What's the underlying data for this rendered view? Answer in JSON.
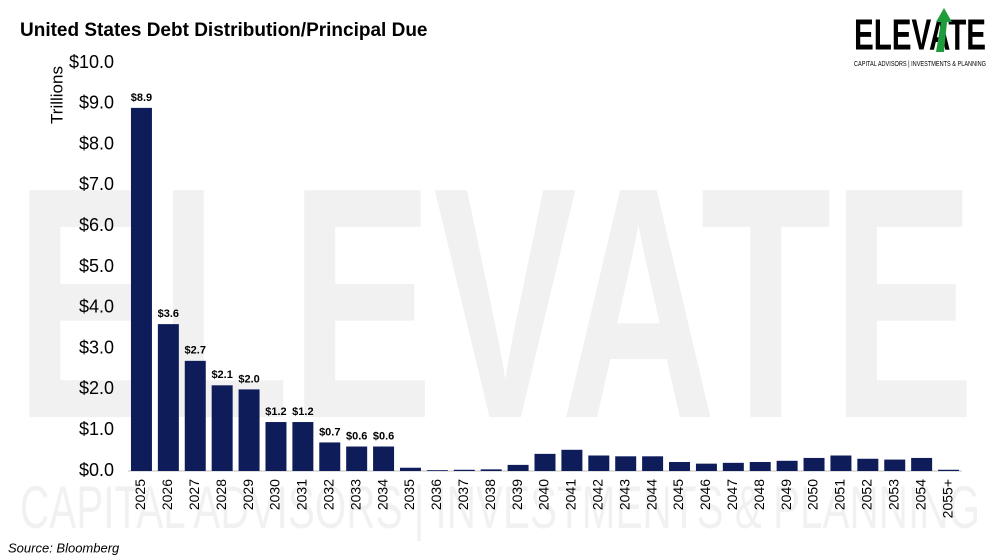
{
  "chart_data": {
    "type": "bar",
    "title": "United States Debt Distribution/Principal Due",
    "y_label": "Trillions",
    "source": "Source: Bloomberg",
    "brand": "ELEVATE",
    "brand_tagline": "CAPITAL ADVISORS | INVESTMENTS & PLANNING",
    "color": "#0e1c5a",
    "categories": [
      "2025",
      "2026",
      "2027",
      "2028",
      "2029",
      "2030",
      "2031",
      "2032",
      "2033",
      "2034",
      "2035",
      "2036",
      "2037",
      "2038",
      "2039",
      "2040",
      "2041",
      "2042",
      "2043",
      "2044",
      "2045",
      "2046",
      "2047",
      "2048",
      "2049",
      "2050",
      "2051",
      "2052",
      "2053",
      "2054",
      "2055+"
    ],
    "values": [
      8.9,
      3.6,
      2.7,
      2.1,
      2.0,
      1.2,
      1.2,
      0.7,
      0.6,
      0.6,
      0.08,
      0.02,
      0.03,
      0.04,
      0.15,
      0.42,
      0.52,
      0.38,
      0.36,
      0.36,
      0.22,
      0.18,
      0.2,
      0.22,
      0.25,
      0.32,
      0.38,
      0.3,
      0.28,
      0.32,
      0.03
    ],
    "value_labels": [
      "$8.9",
      "$3.6",
      "$2.7",
      "$2.1",
      "$2.0",
      "$1.2",
      "$1.2",
      "$0.7",
      "$0.6",
      "$0.6",
      null,
      null,
      null,
      null,
      null,
      null,
      null,
      null,
      null,
      null,
      null,
      null,
      null,
      null,
      null,
      null,
      null,
      null,
      null,
      null,
      null
    ],
    "ylim": [
      0,
      10
    ],
    "yticks": [
      {
        "value": 0,
        "label": "$0.0"
      },
      {
        "value": 1,
        "label": "$1.0"
      },
      {
        "value": 2,
        "label": "$2.0"
      },
      {
        "value": 3,
        "label": "$3.0"
      },
      {
        "value": 4,
        "label": "$4.0"
      },
      {
        "value": 5,
        "label": "$5.0"
      },
      {
        "value": 6,
        "label": "$6.0"
      },
      {
        "value": 7,
        "label": "$7.0"
      },
      {
        "value": 8,
        "label": "$8.0"
      },
      {
        "value": 9,
        "label": "$9.0"
      },
      {
        "value": 10,
        "label": "$10.0"
      }
    ],
    "grid": false
  }
}
